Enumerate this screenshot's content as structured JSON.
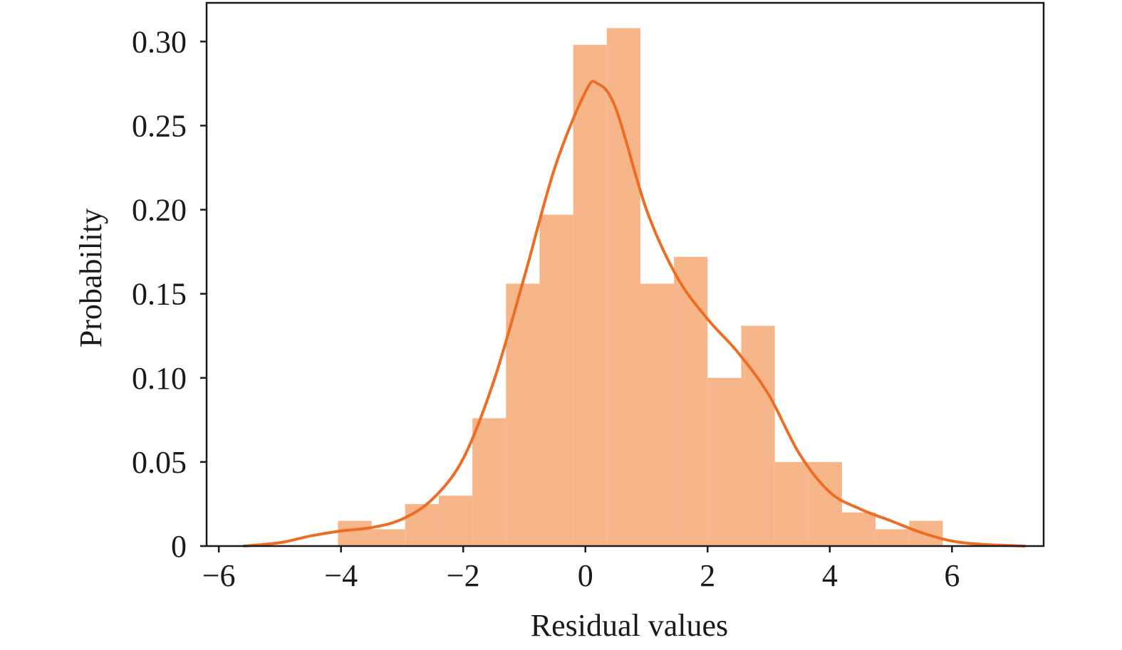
{
  "chart_data": {
    "type": "bar",
    "title": "",
    "xlabel": "Residual values",
    "ylabel": "Probability",
    "xlim": [
      -6.2,
      7.5
    ],
    "ylim": [
      0,
      0.323
    ],
    "grid": false,
    "x_ticks": [
      {
        "value": -6,
        "label": "−6"
      },
      {
        "value": -4,
        "label": "−4"
      },
      {
        "value": -2,
        "label": "−2"
      },
      {
        "value": 0,
        "label": "0"
      },
      {
        "value": 2,
        "label": "2"
      },
      {
        "value": 4,
        "label": "4"
      },
      {
        "value": 6,
        "label": "6"
      }
    ],
    "y_ticks": [
      {
        "value": 0,
        "label": "0"
      },
      {
        "value": 0.05,
        "label": "0.05"
      },
      {
        "value": 0.1,
        "label": "0.10"
      },
      {
        "value": 0.15,
        "label": "0.15"
      },
      {
        "value": 0.2,
        "label": "0.20"
      },
      {
        "value": 0.25,
        "label": "0.25"
      },
      {
        "value": 0.3,
        "label": "0.30"
      }
    ],
    "bins": [
      {
        "x0": -4.05,
        "x1": -3.5,
        "value": 0.015
      },
      {
        "x0": -3.5,
        "x1": -2.95,
        "value": 0.01
      },
      {
        "x0": -2.95,
        "x1": -2.4,
        "value": 0.025
      },
      {
        "x0": -2.4,
        "x1": -1.85,
        "value": 0.03
      },
      {
        "x0": -1.85,
        "x1": -1.3,
        "value": 0.076
      },
      {
        "x0": -1.3,
        "x1": -0.75,
        "value": 0.156
      },
      {
        "x0": -0.75,
        "x1": -0.2,
        "value": 0.197
      },
      {
        "x0": -0.2,
        "x1": 0.35,
        "value": 0.298
      },
      {
        "x0": 0.35,
        "x1": 0.9,
        "value": 0.308
      },
      {
        "x0": 0.9,
        "x1": 1.45,
        "value": 0.156
      },
      {
        "x0": 1.45,
        "x1": 2.0,
        "value": 0.172
      },
      {
        "x0": 2.0,
        "x1": 2.55,
        "value": 0.1
      },
      {
        "x0": 2.55,
        "x1": 3.1,
        "value": 0.131
      },
      {
        "x0": 3.1,
        "x1": 3.65,
        "value": 0.05
      },
      {
        "x0": 3.65,
        "x1": 4.2,
        "value": 0.05
      },
      {
        "x0": 4.2,
        "x1": 4.75,
        "value": 0.02
      },
      {
        "x0": 4.75,
        "x1": 5.3,
        "value": 0.01
      },
      {
        "x0": 5.3,
        "x1": 5.85,
        "value": 0.015
      }
    ],
    "kde": {
      "x": [
        -5.6,
        -5.0,
        -4.5,
        -4.0,
        -3.5,
        -3.0,
        -2.5,
        -2.0,
        -1.5,
        -1.0,
        -0.5,
        0.0,
        0.2,
        0.5,
        1.0,
        1.5,
        2.0,
        2.5,
        3.0,
        3.5,
        4.0,
        4.5,
        5.0,
        5.5,
        6.0,
        6.5,
        7.2
      ],
      "y": [
        0.0,
        0.002,
        0.006,
        0.009,
        0.011,
        0.016,
        0.028,
        0.052,
        0.098,
        0.16,
        0.225,
        0.27,
        0.275,
        0.26,
        0.2,
        0.16,
        0.135,
        0.115,
        0.09,
        0.055,
        0.032,
        0.022,
        0.015,
        0.008,
        0.003,
        0.001,
        0.0
      ]
    },
    "colors": {
      "bars": "#f7b68a",
      "kde": "#ee6d25",
      "axis": "#1a1a1a"
    }
  }
}
